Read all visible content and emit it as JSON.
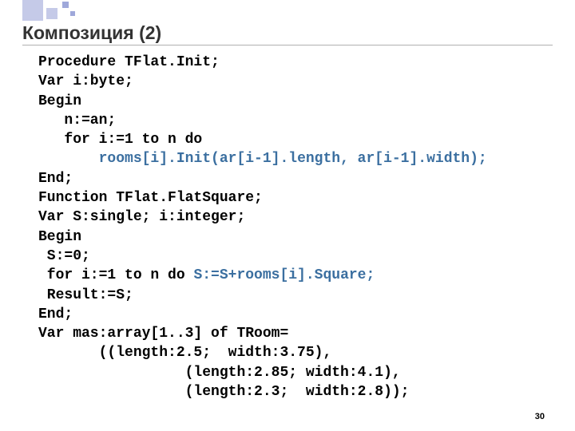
{
  "slide": {
    "title": "Композиция (2)",
    "page_number": "30",
    "colors": {
      "background": "#ffffff",
      "title_text": "#333333",
      "code_text": "#000000",
      "highlight": "#3b6fa0",
      "decor_light": "#c5cae8",
      "decor_dark": "#9fa8da",
      "rule": "#b0b0b0"
    },
    "typography": {
      "title_font": "Arial",
      "title_size_pt": 18,
      "title_weight": "bold",
      "code_font": "Courier New",
      "code_size_pt": 14,
      "code_weight": "bold",
      "pagenum_size_pt": 8
    },
    "code": {
      "l01": "Procedure TFlat.Init;",
      "l02": "Var i:byte;",
      "l03": "Begin",
      "l04": "   n:=an;",
      "l05": "   for i:=1 to n do",
      "l06_pre": "       ",
      "l06_hl": "rooms[i].Init(ar[i-1].length, ar[i-1].width);",
      "l07": "End;",
      "l08": "Function TFlat.FlatSquare;",
      "l09": "Var S:single; i:integer;",
      "l10": "Begin",
      "l11": " S:=0;",
      "l12_pre": " for i:=1 to n do ",
      "l12_hl": "S:=S+rooms[i].Square;",
      "l13": " Result:=S;",
      "l14": "End;",
      "l15": "Var mas:array[1..3] of TRoom=",
      "l16": "       ((length:2.5;  width:3.75),",
      "l17": "                 (length:2.85; width:4.1),",
      "l18": "                 (length:2.3;  width:2.8));"
    }
  }
}
